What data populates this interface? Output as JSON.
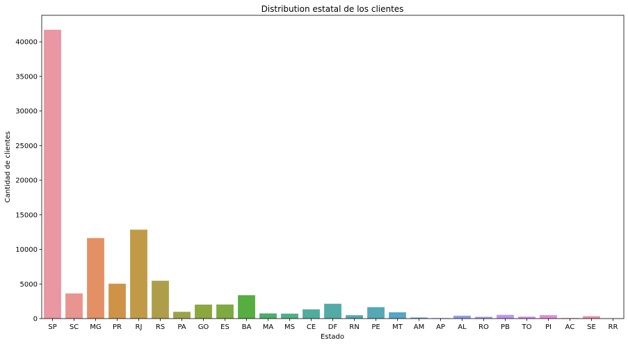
{
  "chart_data": {
    "type": "bar",
    "title": "Distribution estatal de los clientes",
    "xlabel": "Estado",
    "ylabel": "Cantidad de clientes",
    "categories": [
      "SP",
      "SC",
      "MG",
      "PR",
      "RJ",
      "RS",
      "PA",
      "GO",
      "ES",
      "BA",
      "MA",
      "MS",
      "CE",
      "DF",
      "RN",
      "PE",
      "MT",
      "AM",
      "AP",
      "AL",
      "RO",
      "PB",
      "TO",
      "PI",
      "AC",
      "SE",
      "RR"
    ],
    "values": [
      41746,
      3637,
      11635,
      5045,
      12852,
      5466,
      975,
      2020,
      2033,
      3380,
      747,
      715,
      1336,
      2140,
      485,
      1652,
      907,
      148,
      68,
      413,
      253,
      536,
      280,
      495,
      81,
      350,
      46
    ],
    "colors": [
      "#ea96a3",
      "#e7958e",
      "#e39064",
      "#cf9348",
      "#c19a48",
      "#ae9e4a",
      "#9da148",
      "#8da73f",
      "#7dab3f",
      "#55ae3f",
      "#4cae68",
      "#4faf89",
      "#50ac9c",
      "#52aba5",
      "#54a9ae",
      "#56a8b7",
      "#57a6c3",
      "#62a0d2",
      "#7d9ae6",
      "#909bee",
      "#a998ee",
      "#c193ed",
      "#d58ded",
      "#e48cdc",
      "#eb90c5",
      "#eb91b3",
      "#ec92a7"
    ],
    "yticks": [
      0,
      5000,
      10000,
      15000,
      20000,
      25000,
      30000,
      35000,
      40000
    ],
    "ylim": [
      0,
      43834
    ],
    "grid": false
  }
}
